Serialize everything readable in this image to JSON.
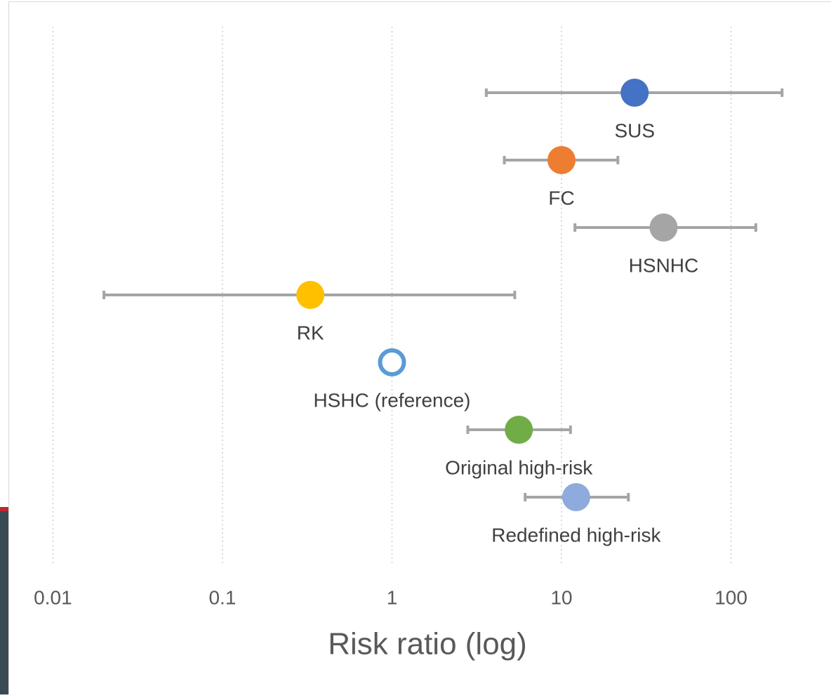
{
  "chart_data": {
    "type": "forest",
    "x_label": "Risk ratio (log)",
    "categories": [
      "SUS",
      "FC",
      "HSNHC",
      "RK",
      "HSHC (reference)",
      "Original high-risk",
      "Redefined high-risk"
    ],
    "values": [
      27,
      10,
      40,
      0.33,
      1,
      5.6,
      12.2
    ],
    "lower": [
      3.6,
      4.6,
      12,
      0.02,
      null,
      2.8,
      6.1
    ],
    "upper": [
      200,
      21.5,
      140,
      5.3,
      null,
      11.3,
      24.8
    ],
    "colors": [
      "#4472c4",
      "#ed7d31",
      "#a5a5a5",
      "#ffc000",
      "#5b9bd5",
      "#70ad47",
      "#8faadc"
    ],
    "markers": [
      "filled",
      "filled",
      "filled",
      "filled",
      "hollow",
      "filled",
      "filled"
    ],
    "error_color": "#a5a5a5",
    "xscale": "log",
    "xlim": [
      0.007,
      400
    ],
    "xticks": [
      0.01,
      0.1,
      1,
      10,
      100
    ],
    "grid": true
  }
}
